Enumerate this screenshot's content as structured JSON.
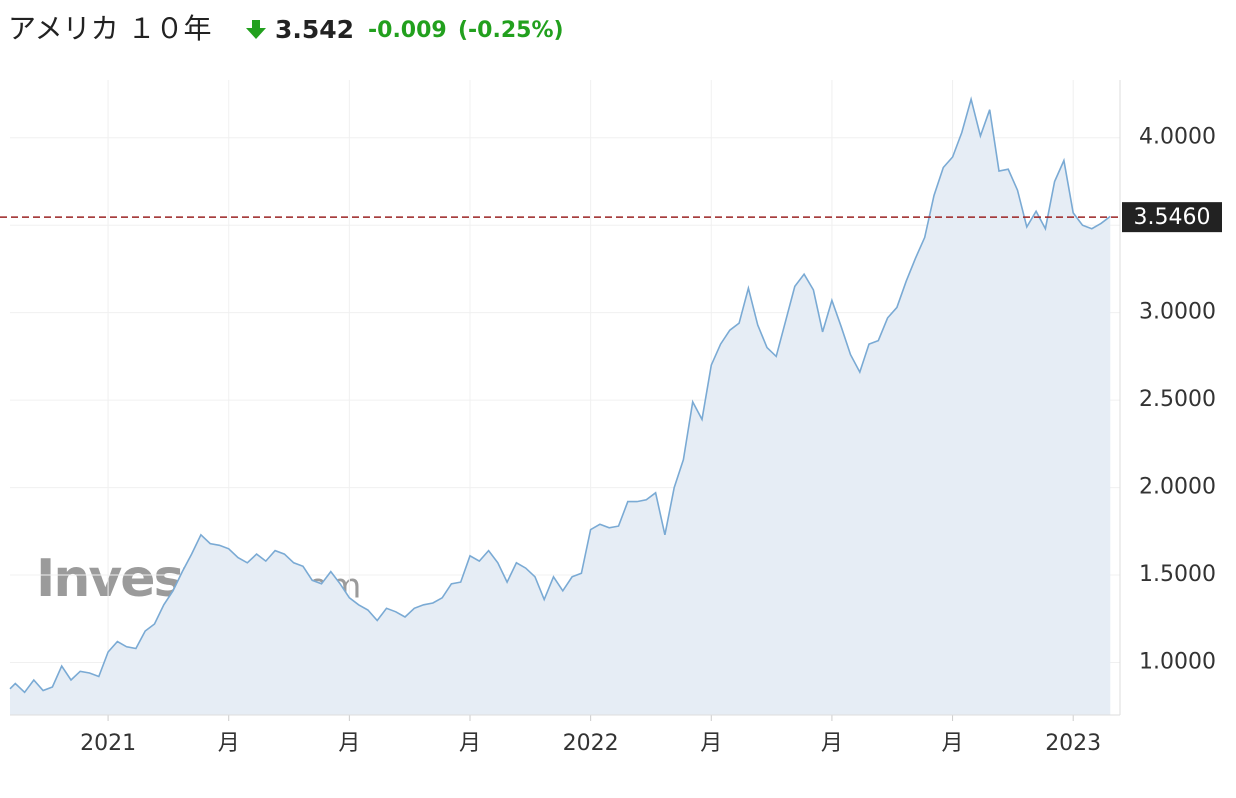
{
  "chart_data": {
    "type": "area",
    "title": "アメリカ １０年",
    "quote": {
      "price": "3.542",
      "change": "-0.009",
      "change_pct": "(-0.25%)",
      "color": "#22a01e"
    },
    "watermark": [
      "Investing",
      ".com"
    ],
    "categories": [
      null,
      null,
      null,
      null,
      null,
      null,
      null,
      null,
      null,
      null,
      null,
      "2021",
      null,
      null,
      null,
      null,
      null,
      null,
      null,
      null,
      null,
      null,
      null,
      null,
      "月",
      null,
      null,
      null,
      null,
      null,
      null,
      null,
      null,
      null,
      null,
      null,
      null,
      "月",
      null,
      null,
      null,
      null,
      null,
      null,
      null,
      null,
      null,
      null,
      null,
      null,
      "月",
      null,
      null,
      null,
      null,
      null,
      null,
      null,
      null,
      null,
      null,
      null,
      null,
      "2022",
      null,
      null,
      null,
      null,
      null,
      null,
      null,
      null,
      null,
      null,
      null,
      null,
      "月",
      null,
      null,
      null,
      null,
      null,
      null,
      null,
      null,
      null,
      null,
      null,
      null,
      "月",
      null,
      null,
      null,
      null,
      null,
      null,
      null,
      null,
      null,
      null,
      null,
      null,
      "月",
      null,
      null,
      null,
      null,
      null,
      null,
      null,
      null,
      null,
      null,
      null,
      null,
      "2023",
      null,
      null,
      null,
      null
    ],
    "values": [
      0.85,
      0.88,
      0.83,
      0.9,
      0.84,
      0.86,
      0.98,
      0.9,
      0.95,
      0.94,
      0.92,
      1.06,
      1.12,
      1.09,
      1.08,
      1.18,
      1.22,
      1.33,
      1.41,
      1.52,
      1.62,
      1.73,
      1.68,
      1.67,
      1.65,
      1.6,
      1.57,
      1.62,
      1.58,
      1.64,
      1.62,
      1.57,
      1.55,
      1.47,
      1.45,
      1.52,
      1.45,
      1.37,
      1.33,
      1.3,
      1.24,
      1.31,
      1.29,
      1.26,
      1.31,
      1.33,
      1.34,
      1.37,
      1.45,
      1.46,
      1.61,
      1.58,
      1.64,
      1.57,
      1.46,
      1.57,
      1.54,
      1.49,
      1.36,
      1.49,
      1.41,
      1.49,
      1.51,
      1.76,
      1.79,
      1.77,
      1.78,
      1.92,
      1.92,
      1.93,
      1.97,
      1.73,
      2.0,
      2.16,
      2.49,
      2.39,
      2.7,
      2.82,
      2.9,
      2.94,
      3.14,
      2.93,
      2.8,
      2.75,
      2.95,
      3.15,
      3.22,
      3.13,
      2.89,
      3.07,
      2.92,
      2.76,
      2.66,
      2.82,
      2.84,
      2.97,
      3.03,
      3.18,
      3.31,
      3.43,
      3.67,
      3.83,
      3.89,
      4.03,
      4.22,
      4.01,
      4.16,
      3.81,
      3.82,
      3.7,
      3.49,
      3.58,
      3.48,
      3.75,
      3.87,
      3.57,
      3.5,
      3.48,
      3.51,
      3.55
    ],
    "color": "#7aaad4",
    "fill_color": "#e6edf5",
    "ylim": [
      0.7,
      4.33
    ],
    "yticks": [
      {
        "value": 1,
        "label": "1.0000"
      },
      {
        "value": 1.5,
        "label": "1.5000"
      },
      {
        "value": 2,
        "label": "2.0000"
      },
      {
        "value": 2.5,
        "label": "2.5000"
      },
      {
        "value": 3,
        "label": "3.0000"
      },
      {
        "value": 3.5,
        "label": "3.5000"
      },
      {
        "value": 4,
        "label": "4.0000"
      }
    ],
    "grid": true,
    "price_line": {
      "value": 3.546,
      "label": "3.5460",
      "color": "#9b2323"
    }
  }
}
